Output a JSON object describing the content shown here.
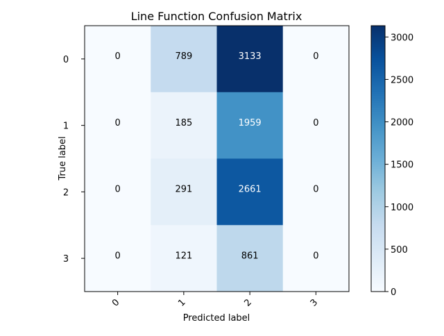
{
  "chart_data": {
    "type": "heatmap",
    "title": "Line Function Confusion Matrix",
    "xlabel": "Predicted label",
    "ylabel": "True label",
    "x_tick_labels": [
      "0",
      "1",
      "2",
      "3"
    ],
    "y_tick_labels": [
      "0",
      "1",
      "2",
      "3"
    ],
    "matrix": [
      [
        0,
        789,
        3133,
        0
      ],
      [
        0,
        185,
        1959,
        0
      ],
      [
        0,
        291,
        2661,
        0
      ],
      [
        0,
        121,
        861,
        0
      ]
    ],
    "colorscale": "Blues",
    "value_range": [
      0,
      3133
    ],
    "colorbar_ticks": [
      "0",
      "500",
      "1000",
      "1500",
      "2000",
      "2500",
      "3000"
    ],
    "colorbar_tick_values": [
      0,
      500,
      1000,
      1500,
      2000,
      2500,
      3000
    ],
    "grid": false
  }
}
